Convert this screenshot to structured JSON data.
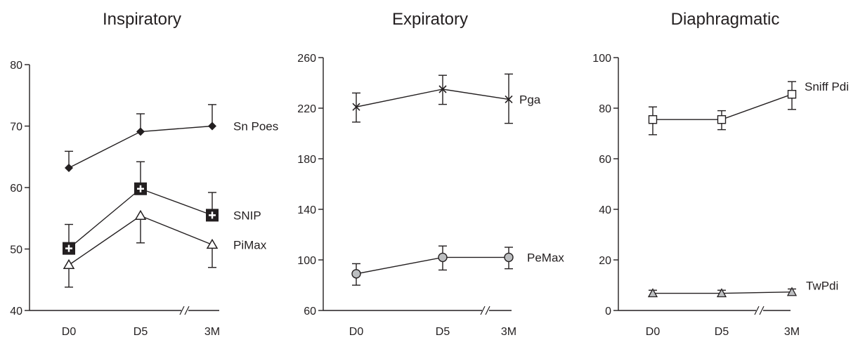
{
  "chart_data": [
    {
      "type": "line",
      "title": "Inspiratory",
      "categories": [
        "D0",
        "D5",
        "3M"
      ],
      "axis_break": "between D5 and 3M",
      "ylim": [
        40,
        80
      ],
      "yticks": [
        40,
        50,
        60,
        70,
        80
      ],
      "series": [
        {
          "name": "Sn Poes",
          "marker": "filled-diamond",
          "values": [
            63.2,
            69.1,
            70.0
          ],
          "error_up": [
            2.7,
            2.9,
            3.5
          ],
          "error_down": [
            0,
            0,
            0
          ]
        },
        {
          "name": "SNIP",
          "marker": "filled-square-plus",
          "values": [
            50.1,
            59.8,
            55.5
          ],
          "error_up": [
            3.9,
            4.4,
            3.7
          ],
          "error_down": [
            0,
            0,
            0
          ]
        },
        {
          "name": "PiMax",
          "marker": "open-triangle",
          "values": [
            47.4,
            55.4,
            50.7
          ],
          "error_up": [
            0,
            0,
            0
          ],
          "error_down": [
            3.6,
            4.4,
            3.7
          ]
        }
      ]
    },
    {
      "type": "line",
      "title": "Expiratory",
      "categories": [
        "D0",
        "D5",
        "3M"
      ],
      "axis_break": "between D5 and 3M",
      "ylim": [
        60,
        260
      ],
      "yticks": [
        60,
        100,
        140,
        180,
        220,
        260
      ],
      "series": [
        {
          "name": "Pga",
          "marker": "x-cross",
          "values": [
            221,
            235,
            227
          ],
          "error_up": [
            11,
            11,
            20
          ],
          "error_down": [
            12,
            12,
            19
          ]
        },
        {
          "name": "PeMax",
          "marker": "grey-circle",
          "values": [
            89,
            102,
            102
          ],
          "error_up": [
            8,
            9,
            8
          ],
          "error_down": [
            9,
            10,
            9
          ]
        }
      ]
    },
    {
      "type": "line",
      "title": "Diaphragmatic",
      "categories": [
        "D0",
        "D5",
        "3M"
      ],
      "axis_break": "between D5 and 3M",
      "ylim": [
        0,
        100
      ],
      "yticks": [
        0,
        20,
        40,
        60,
        80,
        100
      ],
      "series": [
        {
          "name": "Sniff Pdi",
          "marker": "open-square",
          "values": [
            75.5,
            75.5,
            85.5
          ],
          "error_up": [
            5,
            3.5,
            5
          ],
          "error_down": [
            6,
            4,
            6
          ]
        },
        {
          "name": "TwPdi",
          "marker": "grey-triangle",
          "values": [
            6.8,
            6.8,
            7.3
          ],
          "error_up": [
            1.2,
            1.2,
            1.2
          ],
          "error_down": [
            1.2,
            1.2,
            1.2
          ]
        }
      ]
    }
  ],
  "colors": {
    "ink": "#231f20",
    "grey_marker": "#bcbec0",
    "white": "#ffffff"
  }
}
